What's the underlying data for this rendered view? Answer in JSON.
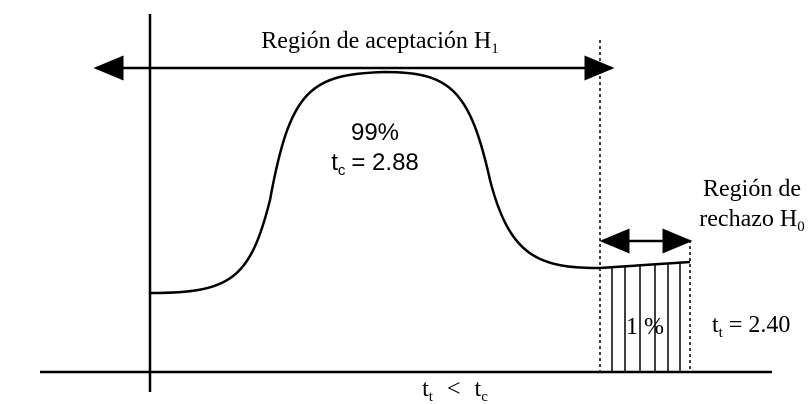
{
  "acceptance_region": {
    "label": "Región de aceptación H",
    "subscript": "1"
  },
  "peak": {
    "percent": "99%",
    "stat": {
      "symbol": "t",
      "subscript": "c",
      "value": "= 2.88"
    }
  },
  "rejection_region": {
    "lines": [
      "Región de",
      "rechazo H"
    ],
    "subscript": "0"
  },
  "tail": {
    "percent": "1 %"
  },
  "critical": {
    "symbol": "t",
    "subscript": "t",
    "value": "= 2.40"
  },
  "comparison": {
    "left": {
      "symbol": "t",
      "subscript": "t"
    },
    "operator": "<",
    "right": {
      "symbol": "t",
      "subscript": "c"
    }
  }
}
